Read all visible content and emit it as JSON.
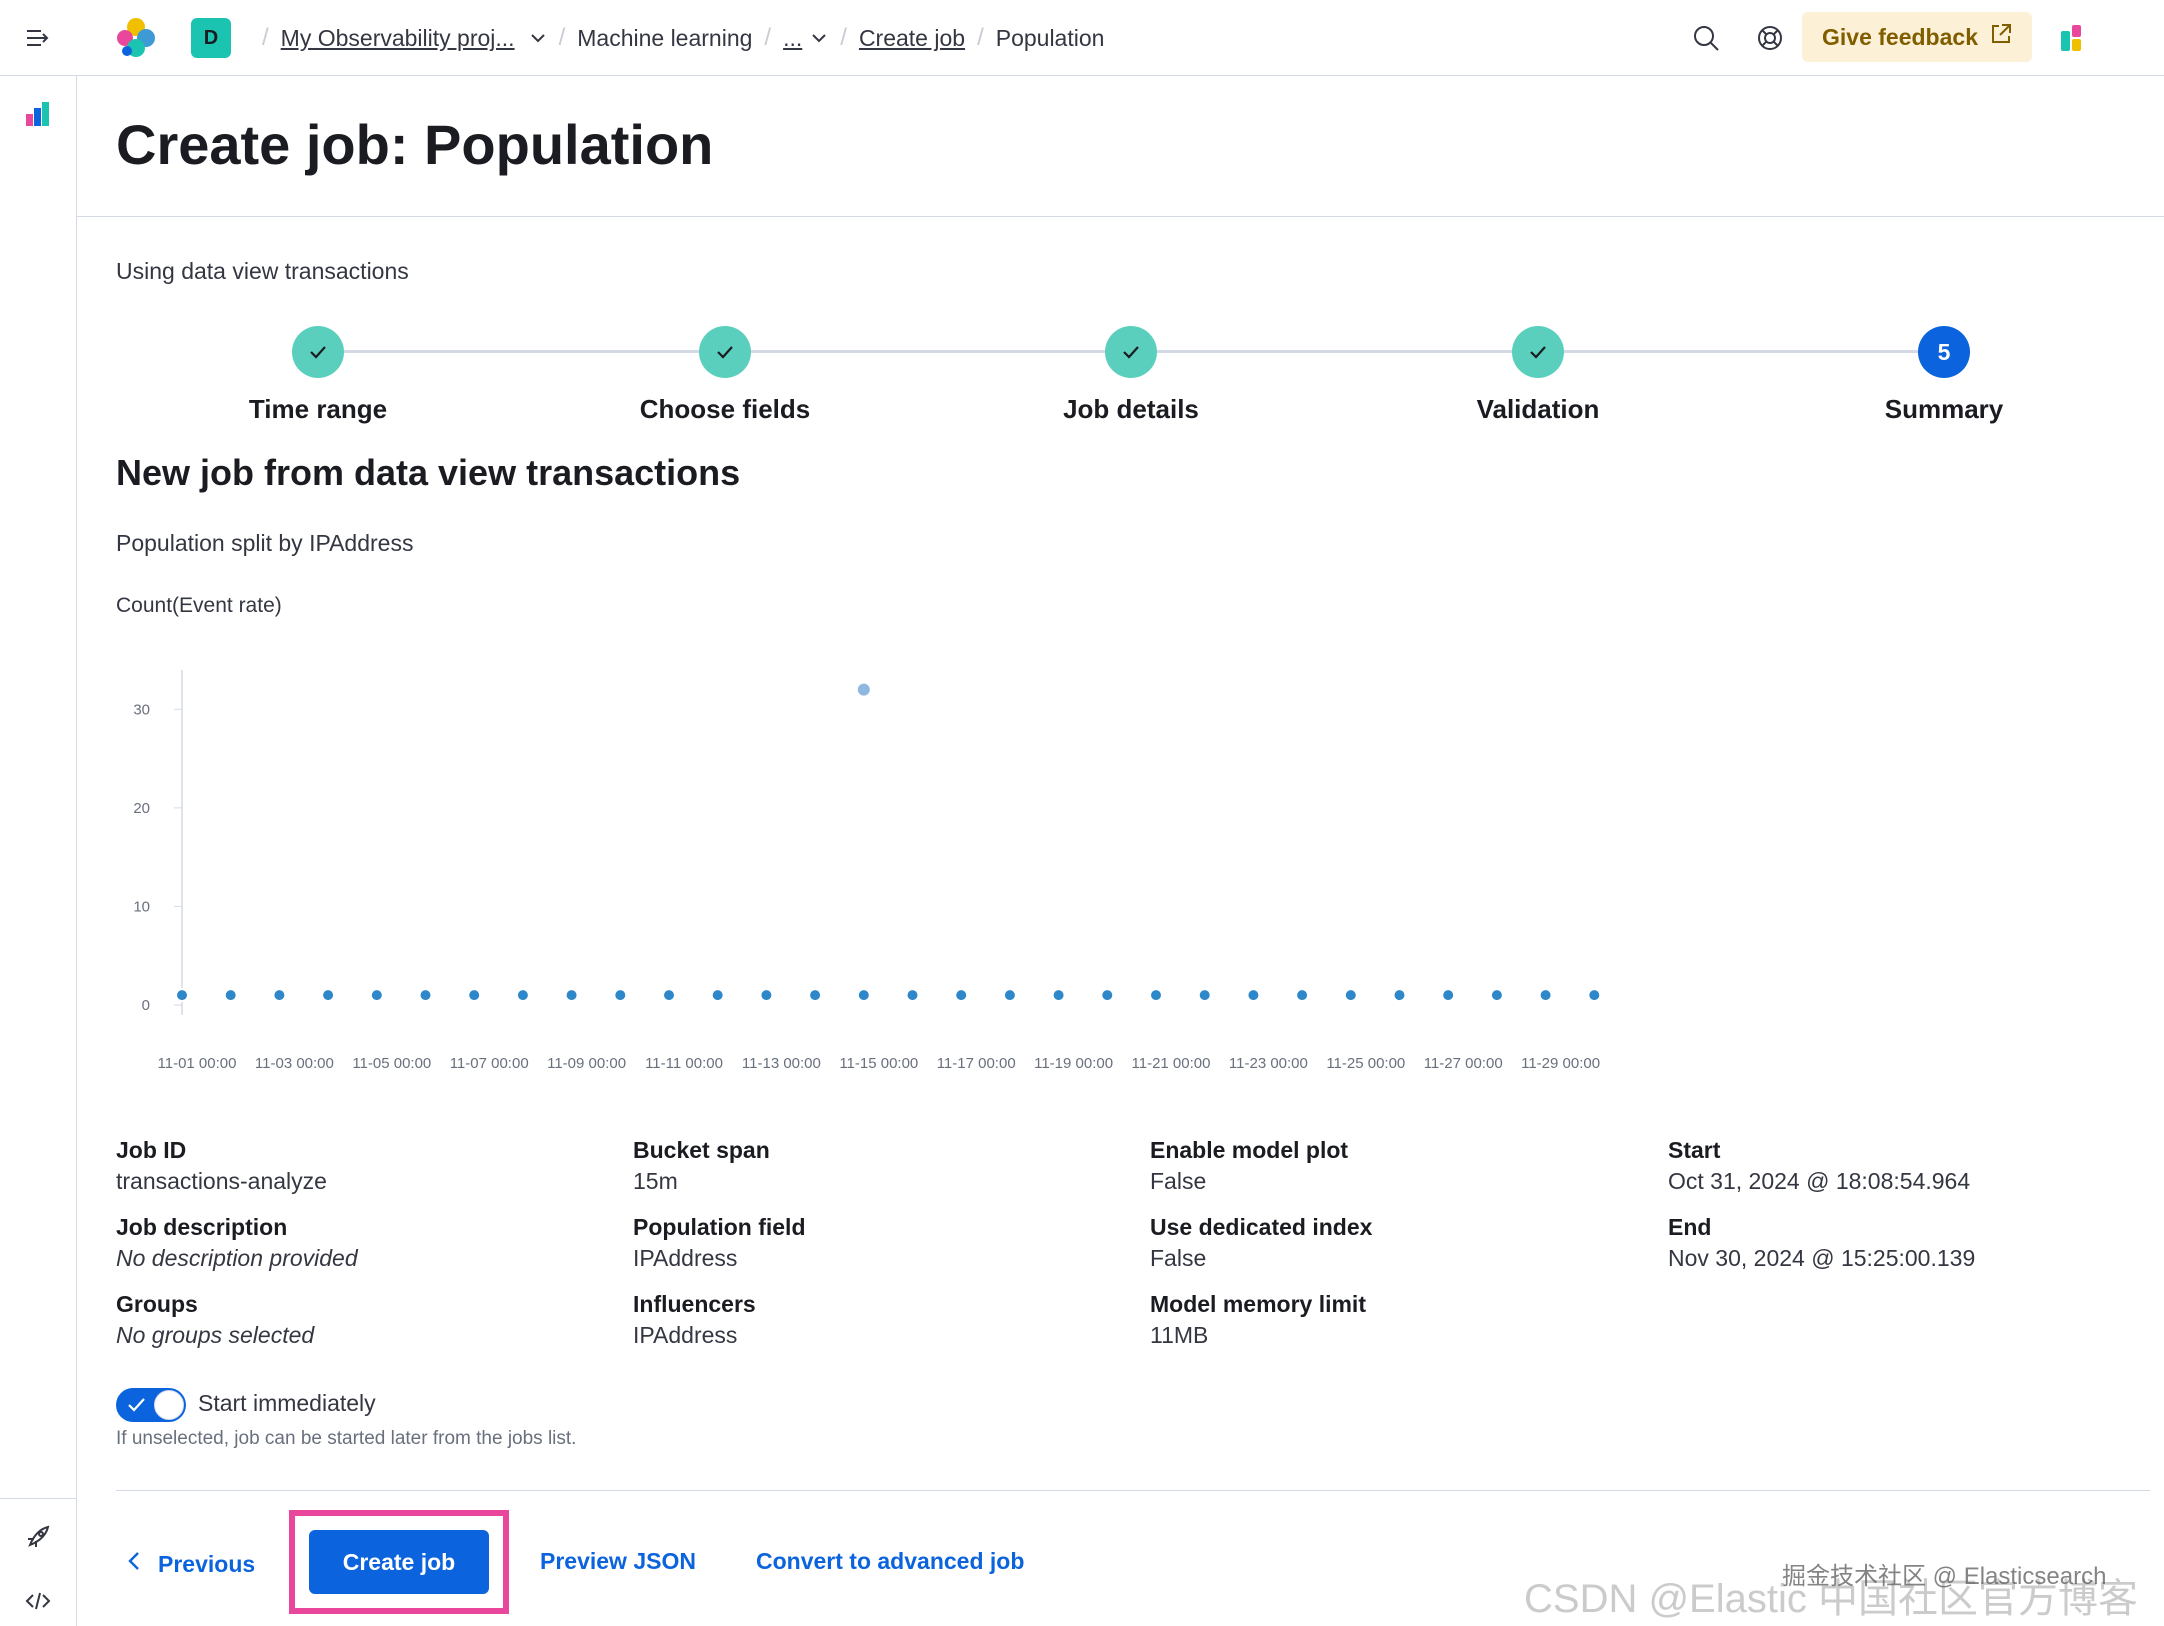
{
  "breadcrumbs": {
    "space_initial": "D",
    "project": "My Observability proj...",
    "app": "Machine learning",
    "ellipsis": "...",
    "create_job": "Create job",
    "current": "Population"
  },
  "header": {
    "feedback_label": "Give feedback"
  },
  "page": {
    "title": "Create job: Population",
    "data_view_text": "Using data view transactions",
    "section_title": "New job from data view transactions",
    "split_text": "Population split by IPAddress",
    "chart_label": "Count(Event rate)"
  },
  "steps": [
    {
      "label": "Time range",
      "status": "complete"
    },
    {
      "label": "Choose fields",
      "status": "complete"
    },
    {
      "label": "Job details",
      "status": "complete"
    },
    {
      "label": "Validation",
      "status": "complete"
    },
    {
      "label": "Summary",
      "status": "current",
      "number": "5"
    }
  ],
  "chart_data": {
    "type": "scatter",
    "title": "Count(Event rate)",
    "xlabel": "",
    "ylabel": "",
    "ylim": [
      0,
      35
    ],
    "yticks": [
      "0",
      "10",
      "20",
      "30"
    ],
    "xticks": [
      "11-01 00:00",
      "11-03 00:00",
      "11-05 00:00",
      "11-07 00:00",
      "11-09 00:00",
      "11-11 00:00",
      "11-13 00:00",
      "11-15 00:00",
      "11-17 00:00",
      "11-19 00:00",
      "11-21 00:00",
      "11-23 00:00",
      "11-25 00:00",
      "11-27 00:00",
      "11-29 00:00"
    ],
    "x_day_start": 1,
    "x_day_step": 1,
    "values": [
      1,
      1,
      1,
      1,
      1,
      1,
      1,
      1,
      1,
      1,
      1,
      1,
      1,
      1,
      1,
      1,
      1,
      1,
      1,
      1,
      1,
      1,
      1,
      1,
      1,
      1,
      1,
      1,
      1,
      1
    ],
    "outlier": {
      "day": 15,
      "value": 32
    },
    "point_color": "#2d87c8",
    "outlier_color": "#8fb8e0"
  },
  "summary": {
    "job_id_label": "Job ID",
    "job_id": "transactions-analyze",
    "job_desc_label": "Job description",
    "job_desc": "No description provided",
    "groups_label": "Groups",
    "groups": "No groups selected",
    "bucket_span_label": "Bucket span",
    "bucket_span": "15m",
    "population_field_label": "Population field",
    "population_field": "IPAddress",
    "influencers_label": "Influencers",
    "influencers": "IPAddress",
    "model_plot_label": "Enable model plot",
    "model_plot": "False",
    "dedicated_index_label": "Use dedicated index",
    "dedicated_index": "False",
    "memory_limit_label": "Model memory limit",
    "memory_limit": "11MB",
    "start_label": "Start",
    "start": "Oct 31, 2024 @ 18:08:54.964",
    "end_label": "End",
    "end": "Nov 30, 2024 @ 15:25:00.139"
  },
  "start_immediately": {
    "label": "Start immediately",
    "help": "If unselected, job can be started later from the jobs list.",
    "checked": true
  },
  "footer": {
    "previous": "Previous",
    "create_job": "Create job",
    "preview_json": "Preview JSON",
    "convert": "Convert to advanced job"
  },
  "watermark": {
    "main": "CSDN @Elastic 中国社区官方博客",
    "secondary": "掘金技术社区 @ Elasticsearch"
  },
  "colors": {
    "accent": "#0b64dd",
    "step_complete": "#5bcfbd",
    "highlight": "#e8479b",
    "feedback_bg": "#fcf0d6"
  }
}
